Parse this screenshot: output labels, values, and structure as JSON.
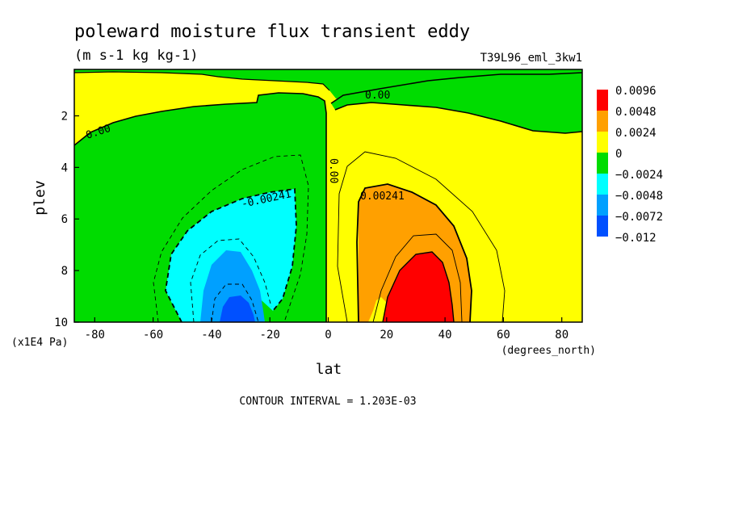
{
  "chart_data": {
    "type": "heatmap",
    "title": "poleward moisture flux transient eddy",
    "units": "(m s-1 kg kg-1)",
    "dataset": "T39L96_eml_3kw1",
    "xlabel": "lat",
    "x_units": "(degrees_north)",
    "ylabel": "plev",
    "y_units": "(x1E4 Pa)",
    "xlim": [
      -87,
      87
    ],
    "ylim": [
      10,
      0.2
    ],
    "x_ticks": [
      "-80",
      "-60",
      "-40",
      "-20",
      "0",
      "20",
      "40",
      "60",
      "80"
    ],
    "y_ticks": [
      "2",
      "4",
      "6",
      "8",
      "10"
    ],
    "contour_interval_text": "CONTOUR INTERVAL = 1.203E-03",
    "contour_labels": [
      "0.00",
      "0.00",
      "0.00",
      "-0.00241",
      "0.00241"
    ],
    "legend": [
      {
        "label": "0.0096",
        "color": "#ff0000"
      },
      {
        "label": "0.0048",
        "color": "#ffa000"
      },
      {
        "label": "0.0024",
        "color": "#ffff00"
      },
      {
        "label": "0",
        "color": "#00dc00"
      },
      {
        "label": "−0.0024",
        "color": "#00ffff"
      },
      {
        "label": "−0.0048",
        "color": "#00a0ff"
      },
      {
        "label": "−0.0072",
        "color": "#0050ff"
      },
      {
        "label": "−0.012",
        "color": null
      }
    ],
    "regions": [
      {
        "level": "0 to 0.0024",
        "color": "#ffff00"
      },
      {
        "level": "-0.0024 to 0",
        "color": "#00dc00"
      },
      {
        "level": "-0.0048 to -0.0024",
        "color": "#00ffff"
      },
      {
        "level": "-0.0072 to -0.0048",
        "color": "#00a0ff"
      },
      {
        "level": "< -0.0072",
        "color": "#0050ff"
      },
      {
        "level": "0.0024 to 0.0048",
        "color": "#ffa000"
      },
      {
        "level": "> 0.0048",
        "color": "#ff0000"
      }
    ],
    "extrema": {
      "min": {
        "lat": -34,
        "plev": 10,
        "value": -0.0084
      },
      "max": {
        "lat": 34,
        "plev": 9.4,
        "value": 0.0066
      }
    }
  }
}
